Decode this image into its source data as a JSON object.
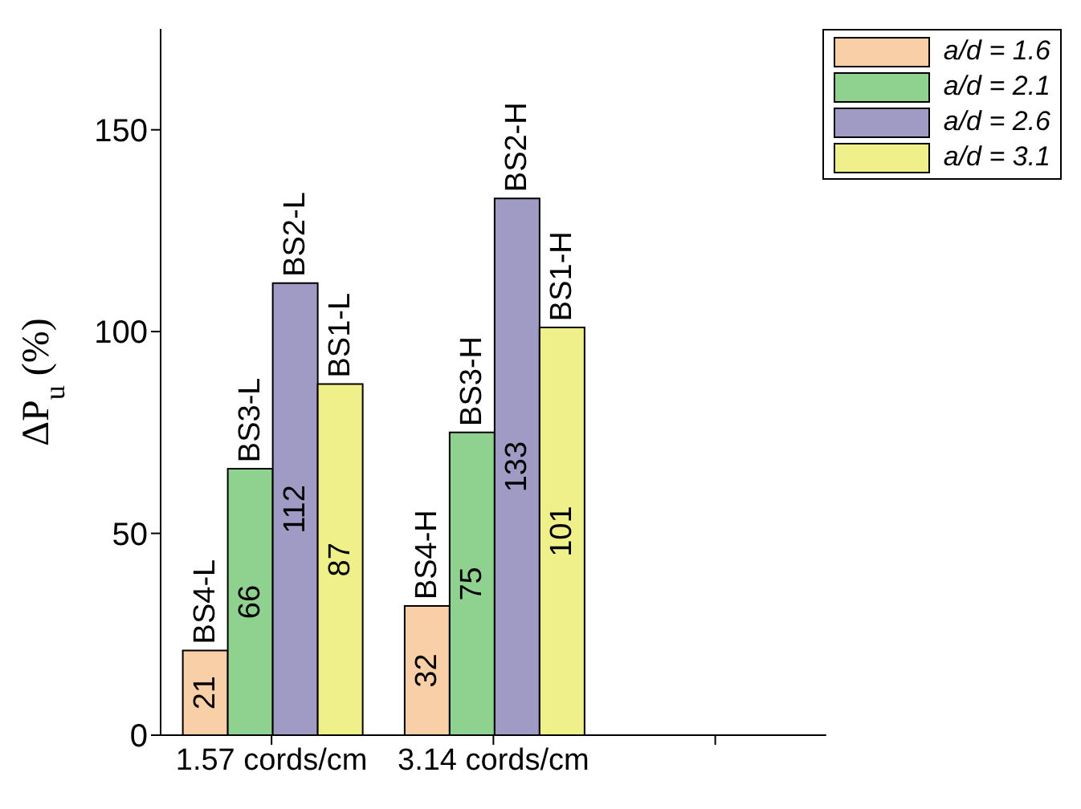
{
  "chart_data": {
    "type": "bar",
    "ylabel": "ΔP$_{u}$ (%)",
    "categories": [
      "1.57 cords/cm",
      "3.14 cords/cm",
      null
    ],
    "series": [
      {
        "name": "a/d = 1.6",
        "color": "#f9cfa8",
        "values": [
          21,
          32,
          null
        ]
      },
      {
        "name": "a/d = 2.1",
        "color": "#8fd18f",
        "values": [
          66,
          75,
          null
        ]
      },
      {
        "name": "a/d = 2.6",
        "color": "#a09bc4",
        "values": [
          112,
          133,
          null
        ]
      },
      {
        "name": "a/d = 3.1",
        "color": "#f0f08a",
        "values": [
          87,
          101,
          null
        ]
      }
    ],
    "ylim": [
      0,
      175
    ],
    "yticks": [
      0,
      50,
      100,
      150
    ],
    "data_labels": true,
    "legend": "top right",
    "grid": false,
    "annotations": [
      {
        "text": "BS4-L",
        "x": "1.57 cords/cm",
        "y": 21
      },
      {
        "text": "BS3-L",
        "x": "1.57 cords/cm",
        "y": 66
      },
      {
        "text": "BS2-L",
        "x": "1.57 cords/cm",
        "y": 112
      },
      {
        "text": "BS1-L",
        "x": "1.57 cords/cm",
        "y": 87
      },
      {
        "text": "BS4-H",
        "x": "3.14 cords/cm",
        "y": 32
      },
      {
        "text": "BS3-H",
        "x": "3.14 cords/cm",
        "y": 75
      },
      {
        "text": "BS2-H",
        "x": "3.14 cords/cm",
        "y": 133
      },
      {
        "text": "BS1-H",
        "x": "3.14 cords/cm",
        "y": 101
      }
    ]
  }
}
